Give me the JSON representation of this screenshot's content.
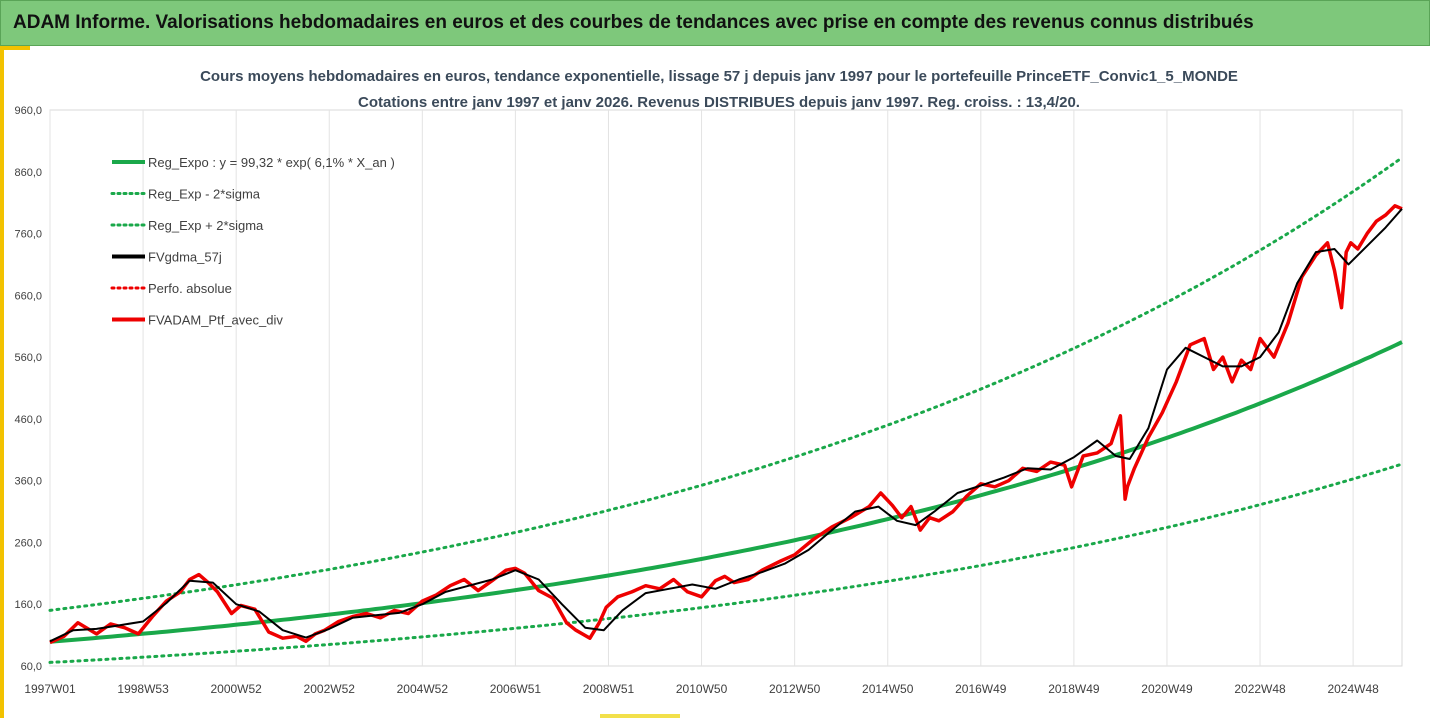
{
  "banner": {
    "title": "ADAM Informe. Valorisations hebdomadaires en euros et des courbes de tendances avec prise en compte des revenus connus distribués"
  },
  "colors": {
    "banner_bg": "#7ec87b",
    "regression": "#1aa84a",
    "sigma_bands": "#1aa84a",
    "smoothed": "#000000",
    "portfolio": "#ee0000",
    "accent_stripe": "#f2c200"
  },
  "chart_data": {
    "type": "line",
    "title": "Cours moyens hebdomadaires  en euros, tendance exponentielle, lissage 57 j depuis janv 1997 pour le portefeuille PrinceETF_Convic1_5_MONDE",
    "subtitle": "Cotations entre janv 1997 et janv 2026. Revenus DISTRIBUES depuis janv 1997. Reg. croiss. : 13,4/20.",
    "xlabel": "",
    "ylabel": "",
    "ylim": [
      60,
      960
    ],
    "y_ticks": [
      "60,0",
      "160,0",
      "260,0",
      "360,0",
      "460,0",
      "560,0",
      "660,0",
      "760,0",
      "860,0",
      "960,0"
    ],
    "x_tick_labels": [
      "1997W01",
      "1998W53",
      "2000W52",
      "2002W52",
      "2004W52",
      "2006W51",
      "2008W51",
      "2010W50",
      "2012W50",
      "2014W50",
      "2016W49",
      "2018W49",
      "2020W49",
      "2022W48",
      "2024W48"
    ],
    "x_tick_years": [
      1997.0,
      1999.0,
      2001.0,
      2003.0,
      2005.0,
      2007.0,
      2009.0,
      2011.0,
      2013.0,
      2015.0,
      2017.0,
      2019.0,
      2021.0,
      2023.0,
      2025.0
    ],
    "x_range_years": [
      1997.0,
      2026.05
    ],
    "grid": "vertical",
    "legend_position": "top-left",
    "regression": {
      "a": 99.32,
      "rate": 0.061,
      "sigma_factor_lower": 0.662,
      "sigma_factor_upper": 1.511
    },
    "legend": [
      {
        "label": "Reg_Expo : y = 99,32 * exp( 6,1% *  X_an )",
        "color": "#1aa84a",
        "dash": "solid"
      },
      {
        "label": "Reg_Exp - 2*sigma",
        "color": "#1aa84a",
        "dash": "dotted"
      },
      {
        "label": "Reg_Exp + 2*sigma",
        "color": "#1aa84a",
        "dash": "dotted"
      },
      {
        "label": "FVgdma_57j",
        "color": "#000000",
        "dash": "solid"
      },
      {
        "label": "Perfo. absolue",
        "color": "#ee0000",
        "dash": "dotted"
      },
      {
        "label": "FVADAM_Ptf_avec_div",
        "color": "#ee0000",
        "dash": "solid"
      }
    ],
    "series": [
      {
        "name": "FVADAM_Ptf_avec_div",
        "x": [
          1997.0,
          1997.3,
          1997.6,
          1998.0,
          1998.3,
          1998.6,
          1998.9,
          1999.2,
          1999.5,
          1999.8,
          2000.0,
          2000.2,
          2000.4,
          2000.6,
          2000.9,
          2001.1,
          2001.4,
          2001.7,
          2002.0,
          2002.3,
          2002.5,
          2002.7,
          2002.9,
          2003.2,
          2003.5,
          2003.8,
          2004.1,
          2004.4,
          2004.7,
          2005.0,
          2005.3,
          2005.6,
          2005.9,
          2006.2,
          2006.5,
          2006.8,
          2007.0,
          2007.2,
          2007.5,
          2007.8,
          2008.1,
          2008.3,
          2008.6,
          2008.8,
          2008.95,
          2009.2,
          2009.5,
          2009.8,
          2010.1,
          2010.4,
          2010.7,
          2011.0,
          2011.3,
          2011.5,
          2011.7,
          2012.0,
          2012.3,
          2012.7,
          2013.0,
          2013.4,
          2013.8,
          2014.2,
          2014.6,
          2014.85,
          2015.1,
          2015.3,
          2015.5,
          2015.7,
          2015.9,
          2016.1,
          2016.4,
          2016.7,
          2017.0,
          2017.3,
          2017.6,
          2017.9,
          2018.2,
          2018.5,
          2018.8,
          2018.95,
          2019.2,
          2019.5,
          2019.8,
          2020.0,
          2020.1,
          2020.15,
          2020.3,
          2020.6,
          2020.9,
          2021.2,
          2021.5,
          2021.8,
          2022.0,
          2022.2,
          2022.4,
          2022.6,
          2022.8,
          2023.0,
          2023.3,
          2023.6,
          2023.9,
          2024.2,
          2024.45,
          2024.6,
          2024.75,
          2024.85,
          2024.95,
          2025.1,
          2025.3,
          2025.5,
          2025.7,
          2025.9,
          2026.05
        ],
        "values": [
          98,
          108,
          130,
          112,
          128,
          122,
          112,
          140,
          165,
          180,
          200,
          208,
          195,
          180,
          145,
          158,
          152,
          115,
          105,
          108,
          100,
          112,
          118,
          132,
          140,
          145,
          138,
          150,
          145,
          165,
          175,
          190,
          200,
          182,
          198,
          215,
          218,
          210,
          182,
          170,
          130,
          118,
          105,
          130,
          155,
          172,
          180,
          190,
          185,
          200,
          180,
          172,
          198,
          205,
          195,
          200,
          215,
          230,
          240,
          265,
          285,
          300,
          318,
          340,
          320,
          300,
          318,
          280,
          300,
          295,
          310,
          335,
          355,
          350,
          360,
          380,
          375,
          390,
          385,
          350,
          400,
          405,
          420,
          465,
          330,
          350,
          380,
          430,
          470,
          520,
          580,
          590,
          540,
          560,
          520,
          555,
          540,
          590,
          560,
          615,
          690,
          725,
          745,
          700,
          640,
          730,
          745,
          735,
          760,
          780,
          790,
          805,
          800
        ]
      },
      {
        "name": "FVgdma_57j",
        "x": [
          1997.0,
          1997.5,
          1998.0,
          1998.5,
          1999.0,
          1999.5,
          2000.0,
          2000.5,
          2001.0,
          2001.5,
          2002.0,
          2002.5,
          2003.0,
          2003.5,
          2004.0,
          2004.5,
          2005.0,
          2005.5,
          2006.0,
          2006.5,
          2007.0,
          2007.5,
          2008.0,
          2008.5,
          2008.9,
          2009.3,
          2009.8,
          2010.3,
          2010.8,
          2011.3,
          2011.8,
          2012.3,
          2012.8,
          2013.3,
          2013.8,
          2014.3,
          2014.8,
          2015.2,
          2015.6,
          2016.0,
          2016.5,
          2017.0,
          2017.5,
          2018.0,
          2018.5,
          2019.0,
          2019.5,
          2019.9,
          2020.2,
          2020.6,
          2021.0,
          2021.4,
          2021.8,
          2022.2,
          2022.6,
          2023.0,
          2023.4,
          2023.8,
          2024.2,
          2024.6,
          2024.9,
          2025.3,
          2025.7,
          2026.05
        ],
        "values": [
          100,
          118,
          120,
          126,
          132,
          162,
          198,
          195,
          160,
          148,
          118,
          106,
          120,
          138,
          142,
          146,
          160,
          180,
          190,
          200,
          215,
          200,
          160,
          122,
          118,
          150,
          178,
          185,
          192,
          185,
          200,
          212,
          226,
          248,
          280,
          310,
          318,
          295,
          288,
          310,
          340,
          352,
          365,
          380,
          378,
          398,
          425,
          400,
          395,
          445,
          540,
          575,
          560,
          545,
          545,
          560,
          600,
          680,
          730,
          735,
          710,
          740,
          770,
          800
        ]
      }
    ]
  }
}
